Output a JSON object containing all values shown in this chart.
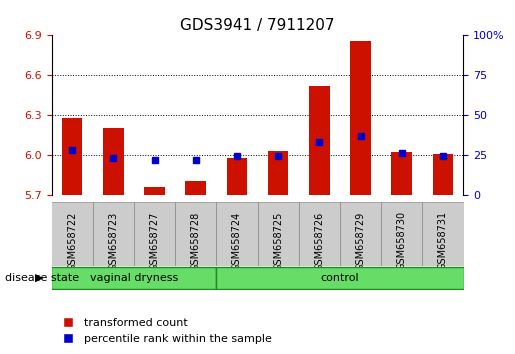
{
  "title": "GDS3941 / 7911207",
  "samples": [
    "GSM658722",
    "GSM658723",
    "GSM658727",
    "GSM658728",
    "GSM658724",
    "GSM658725",
    "GSM658726",
    "GSM658729",
    "GSM658730",
    "GSM658731"
  ],
  "red_values": [
    6.28,
    6.2,
    5.76,
    5.8,
    5.98,
    6.03,
    6.52,
    6.86,
    6.02,
    6.01
  ],
  "blue_values": [
    28,
    23,
    22,
    22,
    24,
    24,
    33,
    37,
    26,
    24
  ],
  "ymin": 5.7,
  "ymax": 6.9,
  "yticks": [
    5.7,
    6.0,
    6.3,
    6.6,
    6.9
  ],
  "y2min": 0,
  "y2max": 100,
  "y2ticks": [
    0,
    25,
    50,
    75,
    100
  ],
  "groups": [
    {
      "label": "vaginal dryness",
      "start": 0,
      "end": 4,
      "color": "#99ee99"
    },
    {
      "label": "control",
      "start": 4,
      "end": 10,
      "color": "#55dd55"
    }
  ],
  "bar_color": "#cc1100",
  "blue_color": "#0000cc",
  "grid_color": "#000000",
  "xlabel_rotate": 90,
  "legend_items": [
    "transformed count",
    "percentile rank within the sample"
  ],
  "disease_state_label": "disease state",
  "bar_width": 0.5,
  "background_color": "#ffffff",
  "tick_bg": "#dddddd",
  "group_bar_color": "#66cc66",
  "group_outline": "#228822"
}
